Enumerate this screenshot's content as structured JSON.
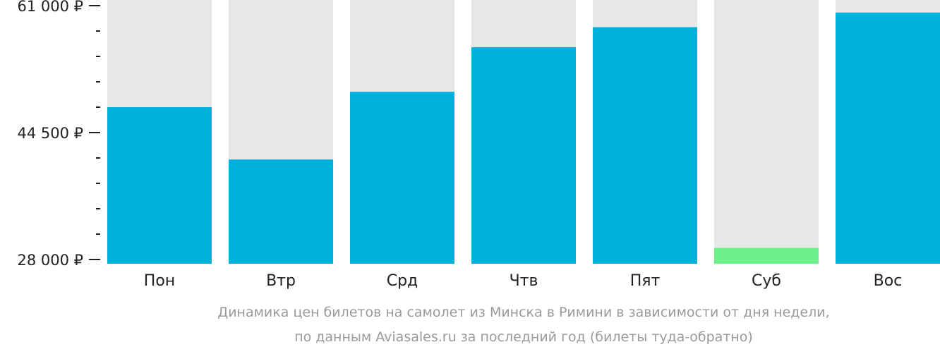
{
  "chart_data": {
    "type": "bar",
    "categories": [
      "Пон",
      "Втр",
      "Срд",
      "Чтв",
      "Пят",
      "Суб",
      "Вос"
    ],
    "values": [
      47800,
      41000,
      49800,
      55600,
      58200,
      29500,
      60100
    ],
    "ylim": [
      28000,
      61000
    ],
    "y_tick_labels": [
      "61 000 ₽",
      "44 500 ₽",
      "28 000 ₽"
    ],
    "y_tick_values": [
      61000,
      44500,
      28000
    ],
    "minor_ticks_per_interval": 4,
    "highlight_index": 5,
    "caption_line1": "Динамика цен билетов на самолет из Минска в Римини в зависимости от дня недели,",
    "caption_line2": "по данным Aviasales.ru за последний год (билеты туда-обратно)"
  },
  "colors": {
    "bar": "#00b0dc",
    "bar_highlight": "#6cf08a",
    "bar_track": "#e8e8e8",
    "axis": "#222222",
    "caption": "#9a9a9a"
  }
}
